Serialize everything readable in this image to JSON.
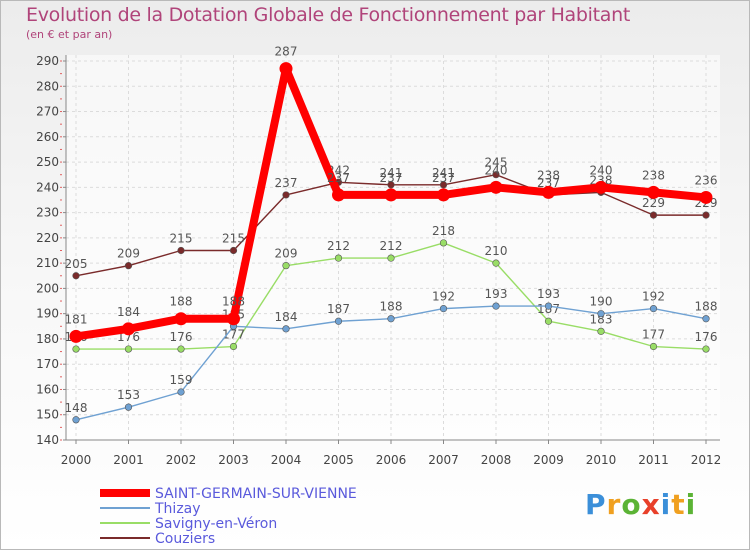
{
  "chart_data": {
    "type": "line",
    "title": "Evolution de la Dotation Globale de Fonctionnement par Habitant",
    "subtitle": "(en € et par an)",
    "x": [
      "2000",
      "2001",
      "2002",
      "2003",
      "2004",
      "2005",
      "2006",
      "2007",
      "2008",
      "2009",
      "2010",
      "2011",
      "2012"
    ],
    "ylim": [
      140,
      290
    ],
    "yticks": [
      140,
      150,
      160,
      170,
      180,
      190,
      200,
      210,
      220,
      230,
      240,
      250,
      260,
      270,
      280,
      290
    ],
    "grid": true,
    "legend_position": "bottom-left",
    "series": [
      {
        "name": "Couziers",
        "color": "#7a2b2b",
        "values": [
          205,
          209,
          215,
          215,
          237,
          242,
          241,
          241,
          245,
          237,
          238,
          229,
          229
        ]
      },
      {
        "name": "Savigny-en-Véron",
        "color": "#99dd66",
        "values": [
          176,
          176,
          176,
          177,
          209,
          212,
          212,
          218,
          210,
          187,
          183,
          177,
          176
        ]
      },
      {
        "name": "Thizay",
        "color": "#6fa1d2",
        "values": [
          148,
          153,
          159,
          185,
          184,
          187,
          188,
          192,
          193,
          193,
          190,
          192,
          188
        ]
      },
      {
        "name": "SAINT-GERMAIN-SUR-VIENNE",
        "color": "#ff0000",
        "values": [
          181,
          184,
          188,
          188,
          287,
          237,
          237,
          237,
          240,
          238,
          240,
          238,
          236
        ]
      }
    ]
  },
  "legend": [
    {
      "label": "SAINT-GERMAIN-SUR-VIENNE",
      "color": "#ff0000",
      "thick": true
    },
    {
      "label": "Thizay",
      "color": "#6fa1d2",
      "thick": false
    },
    {
      "label": "Savigny-en-Véron",
      "color": "#99dd66",
      "thick": false
    },
    {
      "label": "Couziers",
      "color": "#7a2b2b",
      "thick": false
    }
  ],
  "logo": {
    "p": "P",
    "r": "r",
    "o": "o",
    "x": "x",
    "i": "i",
    "t": "t",
    "i2": "i"
  }
}
